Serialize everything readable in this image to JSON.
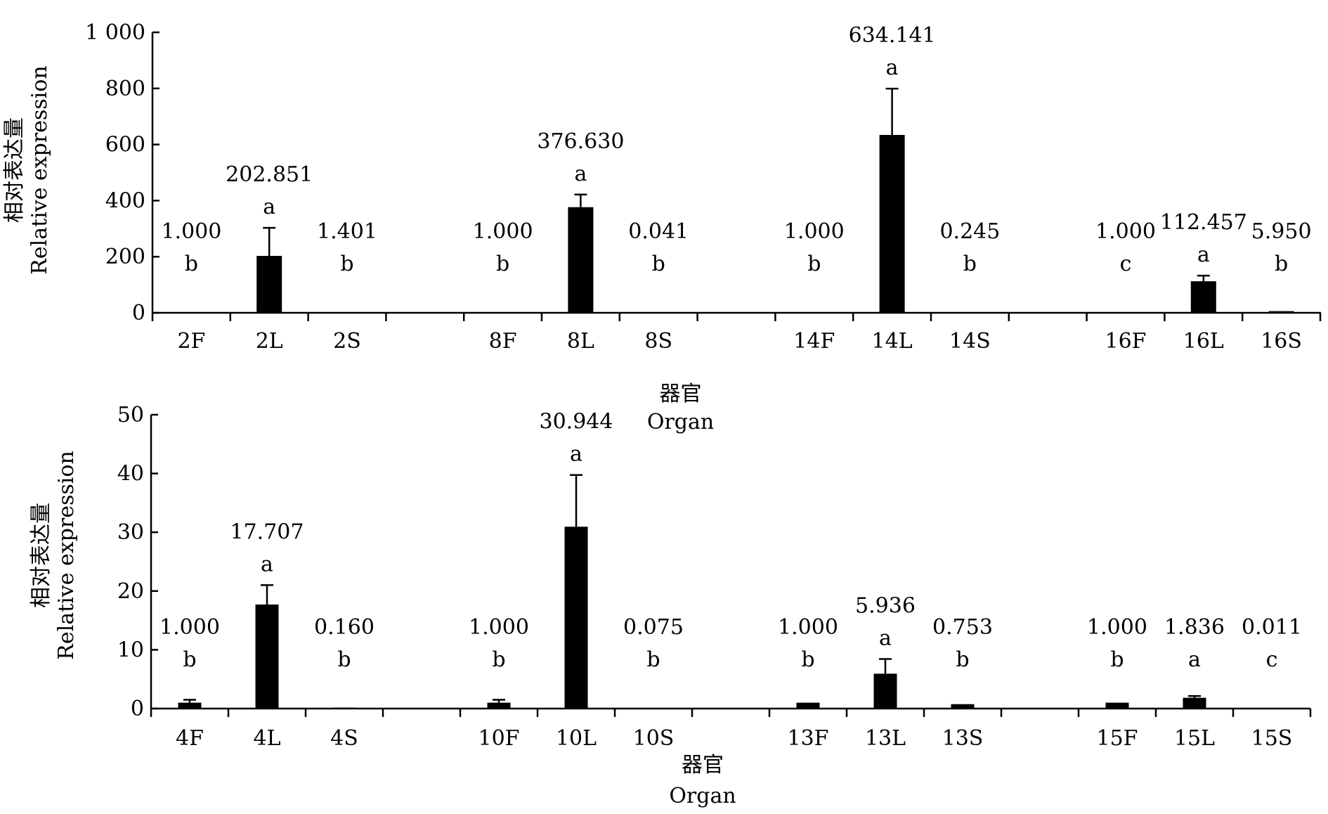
{
  "chart_data": [
    {
      "type": "bar",
      "ylabel_cn": "相对表达量",
      "ylabel_en": "Relative expression",
      "xlabel_cn": "器官",
      "xlabel_en": "Organ",
      "ylim": [
        0,
        1000
      ],
      "yticks": [
        "0",
        "200",
        "400",
        "600",
        "800",
        "1 000"
      ],
      "ytick_values": [
        0,
        200,
        400,
        600,
        800,
        1000
      ],
      "bar_color": "#000000",
      "groups": [
        {
          "categories": [
            "2F",
            "2L",
            "2S"
          ],
          "values": [
            1.0,
            202.851,
            1.401
          ],
          "errors": [
            0,
            100,
            0
          ],
          "value_labels": [
            "1.000",
            "202.851",
            "1.401"
          ],
          "letters": [
            "b",
            "a",
            "b"
          ]
        },
        {
          "categories": [
            "8F",
            "8L",
            "8S"
          ],
          "values": [
            1.0,
            376.63,
            0.041
          ],
          "errors": [
            0,
            45,
            0
          ],
          "value_labels": [
            "1.000",
            "376.630",
            "0.041"
          ],
          "letters": [
            "b",
            "a",
            "b"
          ]
        },
        {
          "categories": [
            "14F",
            "14L",
            "14S"
          ],
          "values": [
            1.0,
            634.141,
            0.245
          ],
          "errors": [
            0,
            165,
            0
          ],
          "value_labels": [
            "1.000",
            "634.141",
            "0.245"
          ],
          "letters": [
            "b",
            "a",
            "b"
          ]
        },
        {
          "categories": [
            "16F",
            "16L",
            "16S"
          ],
          "values": [
            1.0,
            112.457,
            5.95
          ],
          "errors": [
            0,
            20,
            0
          ],
          "value_labels": [
            "1.000",
            "112.457",
            "5.950"
          ],
          "letters": [
            "c",
            "a",
            "b"
          ]
        }
      ]
    },
    {
      "type": "bar",
      "ylabel_cn": "相对表达量",
      "ylabel_en": "Relative expression",
      "xlabel_cn": "器官",
      "xlabel_en": "Organ",
      "ylim": [
        0,
        50
      ],
      "yticks": [
        "0",
        "10",
        "20",
        "30",
        "40",
        "50"
      ],
      "ytick_values": [
        0,
        10,
        20,
        30,
        40,
        50
      ],
      "bar_color": "#000000",
      "groups": [
        {
          "categories": [
            "4F",
            "4L",
            "4S"
          ],
          "values": [
            1.0,
            17.707,
            0.16
          ],
          "errors": [
            0.5,
            3.3,
            0
          ],
          "value_labels": [
            "1.000",
            "17.707",
            "0.160"
          ],
          "letters": [
            "b",
            "a",
            "b"
          ]
        },
        {
          "categories": [
            "10F",
            "10L",
            "10S"
          ],
          "values": [
            1.0,
            30.944,
            0.075
          ],
          "errors": [
            0.5,
            8.8,
            0
          ],
          "value_labels": [
            "1.000",
            "30.944",
            "0.075"
          ],
          "letters": [
            "b",
            "a",
            "b"
          ]
        },
        {
          "categories": [
            "13F",
            "13L",
            "13S"
          ],
          "values": [
            1.0,
            5.936,
            0.753
          ],
          "errors": [
            0,
            2.5,
            0
          ],
          "value_labels": [
            "1.000",
            "5.936",
            "0.753"
          ],
          "letters": [
            "b",
            "a",
            "b"
          ]
        },
        {
          "categories": [
            "15F",
            "15L",
            "15S"
          ],
          "values": [
            1.0,
            1.836,
            0.011
          ],
          "errors": [
            0,
            0.3,
            0
          ],
          "value_labels": [
            "1.000",
            "1.836",
            "0.011"
          ],
          "letters": [
            "b",
            "a",
            "c"
          ]
        }
      ]
    }
  ]
}
